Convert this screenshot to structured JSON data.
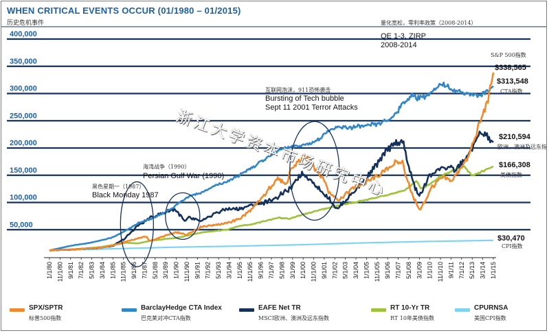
{
  "chart_data": {
    "type": "line",
    "title": "WHEN CRITICAL EVENTS OCCUR (01/1980 – 01/2015)",
    "subtitle": "历史危机事件",
    "ylim": [
      0,
      400000
    ],
    "y_ticks": [
      "400,000",
      "350,000",
      "300,000",
      "250,000",
      "200,000",
      "150,000",
      "100,000",
      "50,000"
    ],
    "y_tick_values": [
      400000,
      350000,
      300000,
      250000,
      200000,
      150000,
      100000,
      50000
    ],
    "x_ticks": [
      "1/1/80",
      "11/1/80",
      "9/1/81",
      "7/1/82",
      "5/1/83",
      "3/1/84",
      "1/1/85",
      "11/1/85",
      "9/1/86",
      "7/1/87",
      "5/1/88",
      "3/1/89",
      "1/1/90",
      "11/1/90",
      "9/1/91",
      "7/1/92",
      "5/1/93",
      "3/1/94",
      "1/1/95",
      "11/1/95",
      "9/1/96",
      "7/1/97",
      "5/1/98",
      "3/1/99",
      "1/1/00",
      "11/1/00",
      "9/1/01",
      "7/1/02",
      "5/1/03",
      "3/1/04",
      "1/1/05",
      "11/1/05",
      "9/1/06",
      "7/1/07",
      "5/1/08",
      "3/1/09",
      "1/1/10",
      "11/1/10",
      "9/1/11",
      "7/1/12",
      "5/1/13",
      "3/1/14",
      "1/1/15"
    ],
    "x_range": [
      1980.0,
      2015.0
    ],
    "series": [
      {
        "name": "SPX/SPTR",
        "name_cn": "标普500指数",
        "color": "#f08a2c",
        "end_label": "$338,565",
        "end_sub": "S&P 500指数",
        "x": [
          1980,
          1982,
          1984,
          1985,
          1986,
          1987.6,
          1987.9,
          1989,
          1990,
          1990.8,
          1992,
          1994,
          1995,
          1996,
          1997,
          1998,
          1998.7,
          1999,
          2000,
          2000.7,
          2001,
          2001.7,
          2002,
          2002.8,
          2003,
          2004,
          2005,
          2006,
          2007,
          2007.8,
          2008.5,
          2009.2,
          2009.8,
          2010,
          2011,
          2011.7,
          2012,
          2013,
          2014,
          2014.7,
          2015
        ],
        "values": [
          12000,
          14000,
          17000,
          21000,
          28000,
          38000,
          29000,
          38000,
          45000,
          41000,
          56000,
          62000,
          70000,
          88000,
          115000,
          145000,
          130000,
          160000,
          183000,
          175000,
          160000,
          140000,
          120000,
          105000,
          108000,
          128000,
          138000,
          150000,
          170000,
          175000,
          120000,
          85000,
          110000,
          125000,
          145000,
          140000,
          150000,
          180000,
          250000,
          300000,
          338565
        ]
      },
      {
        "name": "BarclayHedge CTA Index",
        "name_cn": "巴克莱对冲CTA指数",
        "color": "#2f86c8",
        "end_label": "$313,548",
        "end_sub": "CTA指数",
        "x": [
          1980,
          1981,
          1982,
          1983,
          1984,
          1985,
          1986,
          1987,
          1988,
          1989,
          1990,
          1991,
          1992,
          1993,
          1994,
          1995,
          1996,
          1997,
          1998,
          1999,
          2000,
          2001,
          2002,
          2003,
          2004,
          2005,
          2006,
          2007,
          2008,
          2008.8,
          2009,
          2010,
          2011,
          2012,
          2013,
          2014,
          2015
        ],
        "values": [
          12000,
          17000,
          22000,
          25000,
          30000,
          36000,
          48000,
          62000,
          70000,
          80000,
          95000,
          112000,
          118000,
          130000,
          138000,
          150000,
          165000,
          180000,
          195000,
          202000,
          205000,
          212000,
          232000,
          238000,
          238000,
          240000,
          245000,
          255000,
          285000,
          298000,
          292000,
          298000,
          318000,
          305000,
          300000,
          295000,
          313548
        ]
      },
      {
        "name": "EAFE Net TR",
        "name_cn": "MSCI欧洲、澳洲及远东指数",
        "color": "#14305c",
        "end_label": "$210,594",
        "end_sub": "欧洲、澳洲及远东指数",
        "x": [
          1980,
          1982,
          1984,
          1985,
          1986,
          1987,
          1988,
          1989.9,
          1990.7,
          1991,
          1992,
          1993,
          1994,
          1995,
          1996,
          1997,
          1998,
          1999,
          1999.9,
          2000.7,
          2001,
          2002,
          2002.7,
          2003,
          2004,
          2005,
          2006,
          2007,
          2007.8,
          2008.5,
          2009.1,
          2009.8,
          2010,
          2011,
          2012,
          2013,
          2014,
          2014.5,
          2015
        ],
        "values": [
          12000,
          14000,
          17000,
          20000,
          35000,
          58000,
          72000,
          88000,
          65000,
          72000,
          65000,
          80000,
          88000,
          88000,
          95000,
          100000,
          110000,
          125000,
          155000,
          140000,
          130000,
          108000,
          88000,
          95000,
          120000,
          145000,
          175000,
          205000,
          215000,
          150000,
          110000,
          140000,
          150000,
          165000,
          160000,
          185000,
          230000,
          220000,
          210594
        ]
      },
      {
        "name": "RT 10-Yr TR",
        "name_cn": "RT 10年美债指数",
        "color": "#9dc33b",
        "end_label": "$166,308",
        "end_sub": "美债指数",
        "x": [
          1980,
          1982,
          1984,
          1986,
          1987,
          1988,
          1990,
          1992,
          1994,
          1995,
          1996,
          1998,
          1999,
          2000,
          2002,
          2004,
          2006,
          2008,
          2008.9,
          2009.3,
          2010,
          2011,
          2012,
          2012.6,
          2013.3,
          2014,
          2015
        ],
        "values": [
          12000,
          14000,
          18000,
          26000,
          25000,
          30000,
          35000,
          45000,
          50000,
          57000,
          60000,
          72000,
          70000,
          78000,
          90000,
          100000,
          110000,
          122000,
          140000,
          125000,
          135000,
          150000,
          160000,
          168000,
          150000,
          155000,
          166308
        ]
      },
      {
        "name": "CPURNSA",
        "name_cn": "美国CPI指数",
        "color": "#7ed4f0",
        "end_label": "$30,470",
        "end_sub": "CPI指数",
        "x": [
          1980,
          1985,
          1990,
          1995,
          2000,
          2005,
          2010,
          2015
        ],
        "values": [
          12000,
          15000,
          18000,
          20000,
          22500,
          26000,
          28500,
          30470
        ]
      }
    ],
    "annotations": [
      {
        "cn": "量化宽松，零利率政策（2008-2014）",
        "en": "QE 1-3, ZIRP\n2008-2014"
      },
      {
        "cn": "互联网泡沫，911恐怖袭击",
        "en": "Bursting of Tech bubble\nSept 11 2001 Terror Attacks"
      },
      {
        "cn": "海湾战争（1990）",
        "en": "Persian Gulf War (1990)"
      },
      {
        "cn": "黑色星期一（1987）",
        "en": "Black Monday 1987"
      }
    ]
  },
  "watermark": "浙江大学资本市场研究中心"
}
